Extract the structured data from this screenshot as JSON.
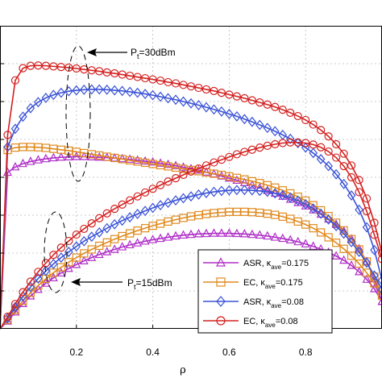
{
  "chart_data": {
    "type": "line",
    "xlabel": "ρ",
    "ylabel": "",
    "xlim": [
      0,
      1.0
    ],
    "ylim": [
      0,
      1.0
    ],
    "grid": true,
    "x_ticks": [
      0.2,
      0.4,
      0.6,
      0.8
    ],
    "x_tick_labels": [
      "0.2",
      "0.4",
      "0.6",
      "0.8"
    ],
    "legend_position": "bottom-right",
    "annotations": [
      {
        "text_main": "P",
        "text_sub": "t",
        "text_rest": "=30dBm"
      },
      {
        "text_main": "P",
        "text_sub": "t",
        "text_rest": "=15dBm"
      }
    ],
    "series": [
      {
        "name": "ASR, κave=0.175",
        "legend": {
          "label": "ASR, ",
          "greek": "κ",
          "sub": "ave",
          "value": "=0.175"
        },
        "color": "#b030c8",
        "marker": "triangle",
        "x": [
          0.0,
          0.02,
          0.04,
          0.06,
          0.08,
          0.1,
          0.12,
          0.14,
          0.16,
          0.18,
          0.2,
          0.22,
          0.24,
          0.26,
          0.28,
          0.3,
          0.32,
          0.34,
          0.36,
          0.38,
          0.4,
          0.42,
          0.44,
          0.46,
          0.48,
          0.5,
          0.52,
          0.54,
          0.56,
          0.58,
          0.6,
          0.62,
          0.64,
          0.66,
          0.68,
          0.7,
          0.72,
          0.74,
          0.76,
          0.78,
          0.8,
          0.82,
          0.84,
          0.86,
          0.88,
          0.9,
          0.92,
          0.94,
          0.96,
          0.98,
          1.0
        ],
        "groups": [
          {
            "label": "30dBm",
            "y": [
              0.0,
              0.516,
              0.534,
              0.545,
              0.552,
              0.557,
              0.561,
              0.564,
              0.566,
              0.567,
              0.568,
              0.568,
              0.567,
              0.566,
              0.565,
              0.563,
              0.561,
              0.559,
              0.556,
              0.553,
              0.55,
              0.546,
              0.542,
              0.538,
              0.533,
              0.528,
              0.523,
              0.517,
              0.511,
              0.504,
              0.497,
              0.49,
              0.482,
              0.474,
              0.465,
              0.456,
              0.447,
              0.437,
              0.427,
              0.416,
              0.405,
              0.392,
              0.378,
              0.362,
              0.344,
              0.322,
              0.296,
              0.264,
              0.222,
              0.165,
              0.09
            ]
          },
          {
            "label": "15dBm",
            "y": [
              0.0,
              0.025,
              0.055,
              0.083,
              0.108,
              0.13,
              0.15,
              0.168,
              0.184,
              0.199,
              0.212,
              0.224,
              0.235,
              0.245,
              0.254,
              0.262,
              0.27,
              0.277,
              0.283,
              0.289,
              0.294,
              0.298,
              0.302,
              0.306,
              0.309,
              0.311,
              0.313,
              0.314,
              0.315,
              0.315,
              0.315,
              0.314,
              0.313,
              0.311,
              0.309,
              0.306,
              0.302,
              0.298,
              0.293,
              0.287,
              0.28,
              0.272,
              0.263,
              0.252,
              0.24,
              0.226,
              0.209,
              0.188,
              0.163,
              0.132,
              0.09
            ]
          }
        ]
      },
      {
        "name": "EC, κave=0.175",
        "legend": {
          "label": "EC, ",
          "greek": "κ",
          "sub": "ave",
          "value": "=0.175"
        },
        "color": "#e08a1e",
        "marker": "square",
        "x": [
          0.0,
          0.02,
          0.04,
          0.06,
          0.08,
          0.1,
          0.12,
          0.14,
          0.16,
          0.18,
          0.2,
          0.22,
          0.24,
          0.26,
          0.28,
          0.3,
          0.32,
          0.34,
          0.36,
          0.38,
          0.4,
          0.42,
          0.44,
          0.46,
          0.48,
          0.5,
          0.52,
          0.54,
          0.56,
          0.58,
          0.6,
          0.62,
          0.64,
          0.66,
          0.68,
          0.7,
          0.72,
          0.74,
          0.76,
          0.78,
          0.8,
          0.82,
          0.84,
          0.86,
          0.88,
          0.9,
          0.92,
          0.94,
          0.96,
          0.98,
          1.0
        ],
        "groups": [
          {
            "label": "30dBm",
            "y": [
              0.0,
              0.59,
              0.598,
              0.6,
              0.6,
              0.599,
              0.597,
              0.594,
              0.591,
              0.588,
              0.584,
              0.58,
              0.576,
              0.572,
              0.568,
              0.564,
              0.56,
              0.556,
              0.552,
              0.548,
              0.544,
              0.54,
              0.536,
              0.532,
              0.528,
              0.524,
              0.52,
              0.516,
              0.512,
              0.508,
              0.503,
              0.498,
              0.493,
              0.487,
              0.481,
              0.474,
              0.466,
              0.457,
              0.447,
              0.436,
              0.423,
              0.408,
              0.391,
              0.372,
              0.35,
              0.325,
              0.296,
              0.262,
              0.222,
              0.172,
              0.11
            ]
          },
          {
            "label": "15dBm",
            "y": [
              0.0,
              0.03,
              0.062,
              0.092,
              0.119,
              0.143,
              0.165,
              0.185,
              0.203,
              0.22,
              0.235,
              0.249,
              0.262,
              0.274,
              0.285,
              0.296,
              0.306,
              0.315,
              0.324,
              0.332,
              0.34,
              0.347,
              0.354,
              0.36,
              0.366,
              0.371,
              0.375,
              0.379,
              0.382,
              0.384,
              0.386,
              0.386,
              0.386,
              0.385,
              0.383,
              0.38,
              0.376,
              0.37,
              0.363,
              0.354,
              0.344,
              0.332,
              0.318,
              0.302,
              0.284,
              0.264,
              0.241,
              0.215,
              0.185,
              0.15,
              0.11
            ]
          }
        ]
      },
      {
        "name": "ASR, κave=0.08",
        "legend": {
          "label": "ASR, ",
          "greek": "κ",
          "sub": "ave",
          "value": "=0.08"
        },
        "color": "#3a52d6",
        "marker": "diamond",
        "x": [
          0.0,
          0.02,
          0.04,
          0.06,
          0.08,
          0.1,
          0.12,
          0.14,
          0.16,
          0.18,
          0.2,
          0.22,
          0.24,
          0.26,
          0.28,
          0.3,
          0.32,
          0.34,
          0.36,
          0.38,
          0.4,
          0.42,
          0.44,
          0.46,
          0.48,
          0.5,
          0.52,
          0.54,
          0.56,
          0.58,
          0.6,
          0.62,
          0.64,
          0.66,
          0.68,
          0.7,
          0.72,
          0.74,
          0.76,
          0.78,
          0.8,
          0.82,
          0.84,
          0.86,
          0.88,
          0.9,
          0.92,
          0.94,
          0.96,
          0.98,
          1.0
        ],
        "groups": [
          {
            "label": "30dBm",
            "y": [
              0.0,
              0.6,
              0.66,
              0.7,
              0.728,
              0.748,
              0.762,
              0.772,
              0.779,
              0.784,
              0.787,
              0.789,
              0.79,
              0.79,
              0.789,
              0.787,
              0.785,
              0.782,
              0.779,
              0.775,
              0.771,
              0.766,
              0.761,
              0.756,
              0.75,
              0.744,
              0.738,
              0.731,
              0.724,
              0.717,
              0.709,
              0.701,
              0.692,
              0.683,
              0.673,
              0.663,
              0.652,
              0.64,
              0.627,
              0.613,
              0.598,
              0.58,
              0.56,
              0.537,
              0.51,
              0.478,
              0.44,
              0.393,
              0.335,
              0.26,
              0.16
            ]
          },
          {
            "label": "15dBm",
            "y": [
              0.0,
              0.035,
              0.072,
              0.107,
              0.138,
              0.166,
              0.191,
              0.214,
              0.235,
              0.254,
              0.272,
              0.289,
              0.304,
              0.318,
              0.332,
              0.345,
              0.357,
              0.368,
              0.379,
              0.389,
              0.399,
              0.408,
              0.416,
              0.424,
              0.431,
              0.437,
              0.443,
              0.448,
              0.452,
              0.455,
              0.457,
              0.458,
              0.458,
              0.457,
              0.455,
              0.452,
              0.447,
              0.441,
              0.433,
              0.423,
              0.411,
              0.397,
              0.38,
              0.361,
              0.339,
              0.314,
              0.286,
              0.254,
              0.218,
              0.176,
              0.13
            ]
          }
        ]
      },
      {
        "name": "EC, κave=0.08",
        "legend": {
          "label": "EC, ",
          "greek": "κ",
          "sub": "ave",
          "value": "=0.08"
        },
        "color": "#d42020",
        "marker": "circle",
        "x": [
          0.0,
          0.02,
          0.04,
          0.06,
          0.08,
          0.1,
          0.12,
          0.14,
          0.16,
          0.18,
          0.2,
          0.22,
          0.24,
          0.26,
          0.28,
          0.3,
          0.32,
          0.34,
          0.36,
          0.38,
          0.4,
          0.42,
          0.44,
          0.46,
          0.48,
          0.5,
          0.52,
          0.54,
          0.56,
          0.58,
          0.6,
          0.62,
          0.64,
          0.66,
          0.68,
          0.7,
          0.72,
          0.74,
          0.76,
          0.78,
          0.8,
          0.82,
          0.84,
          0.86,
          0.88,
          0.9,
          0.92,
          0.94,
          0.96,
          0.98,
          1.0
        ],
        "groups": [
          {
            "label": "30dBm",
            "y": [
              0.0,
              0.64,
              0.82,
              0.86,
              0.868,
              0.869,
              0.868,
              0.866,
              0.864,
              0.862,
              0.859,
              0.856,
              0.853,
              0.85,
              0.846,
              0.843,
              0.839,
              0.835,
              0.831,
              0.827,
              0.823,
              0.819,
              0.814,
              0.81,
              0.805,
              0.8,
              0.795,
              0.79,
              0.785,
              0.779,
              0.773,
              0.767,
              0.761,
              0.754,
              0.747,
              0.74,
              0.732,
              0.723,
              0.713,
              0.702,
              0.689,
              0.674,
              0.656,
              0.635,
              0.609,
              0.578,
              0.539,
              0.491,
              0.43,
              0.35,
              0.25
            ]
          },
          {
            "label": "15dBm",
            "y": [
              0.0,
              0.04,
              0.082,
              0.121,
              0.156,
              0.188,
              0.217,
              0.244,
              0.268,
              0.29,
              0.311,
              0.33,
              0.348,
              0.365,
              0.381,
              0.396,
              0.41,
              0.424,
              0.437,
              0.45,
              0.462,
              0.474,
              0.486,
              0.497,
              0.508,
              0.519,
              0.529,
              0.539,
              0.549,
              0.558,
              0.567,
              0.576,
              0.584,
              0.591,
              0.598,
              0.604,
              0.609,
              0.613,
              0.615,
              0.615,
              0.613,
              0.608,
              0.599,
              0.585,
              0.565,
              0.537,
              0.5,
              0.451,
              0.388,
              0.31,
              0.23
            ]
          }
        ]
      }
    ]
  }
}
